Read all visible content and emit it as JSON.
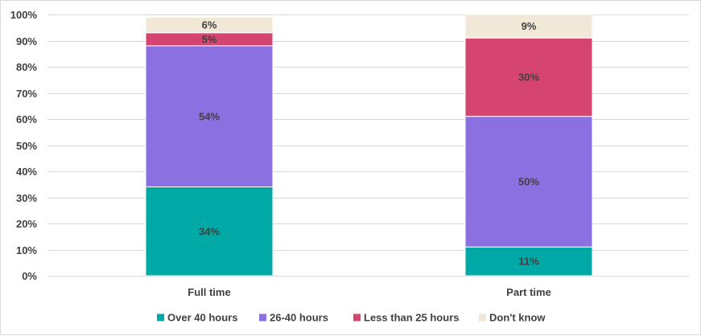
{
  "chart_data": {
    "type": "bar",
    "stacked": true,
    "categories": [
      "Full time",
      "Part time"
    ],
    "series": [
      {
        "name": "Over 40 hours",
        "values": [
          34,
          11
        ],
        "labels": [
          "34%",
          "11%"
        ],
        "color": "#00a9a5"
      },
      {
        "name": "26-40 hours",
        "values": [
          54,
          50
        ],
        "labels": [
          "54%",
          "50%"
        ],
        "color": "#8a70e0"
      },
      {
        "name": "Less than 25 hours",
        "values": [
          5,
          30
        ],
        "labels": [
          "5%",
          "30%"
        ],
        "color": "#d64571"
      },
      {
        "name": "Don't know",
        "values": [
          6,
          9
        ],
        "labels": [
          "6%",
          "9%"
        ],
        "color": "#f2e8d8"
      }
    ],
    "ylim": [
      0,
      100
    ],
    "yticks": [
      0,
      10,
      20,
      30,
      40,
      50,
      60,
      70,
      80,
      90,
      100
    ],
    "ytick_labels": [
      "0%",
      "10%",
      "20%",
      "30%",
      "40%",
      "50%",
      "60%",
      "70%",
      "80%",
      "90%",
      "100%"
    ],
    "grid": true,
    "legend_position": "bottom"
  }
}
